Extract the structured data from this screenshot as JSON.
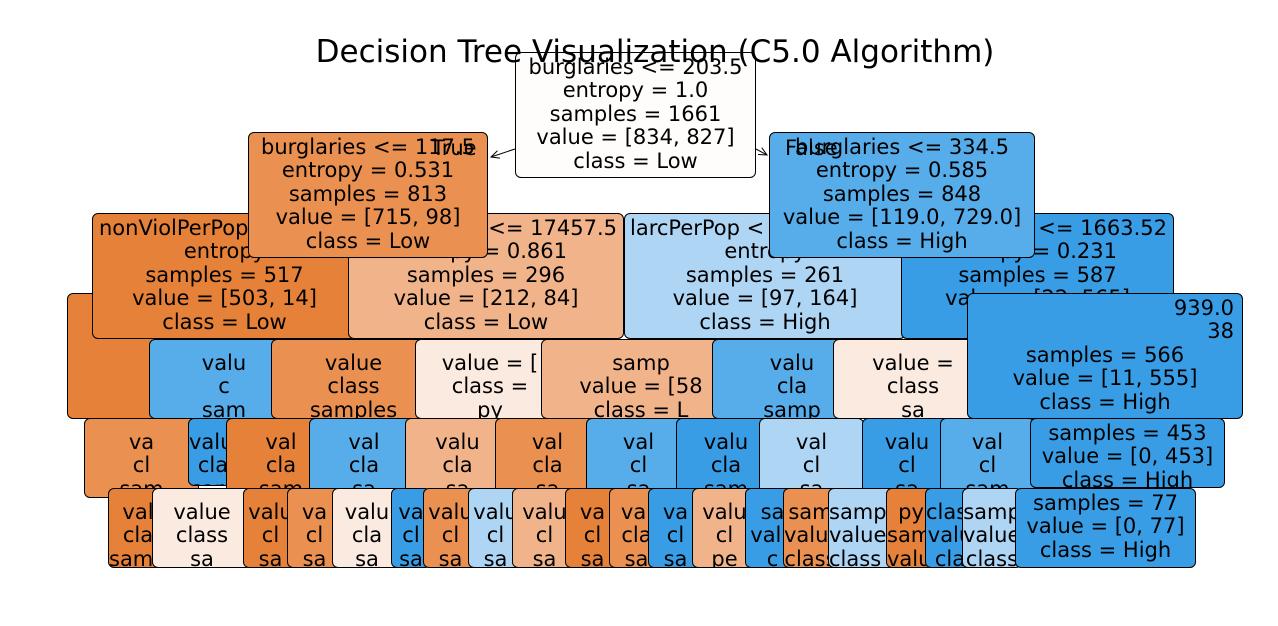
{
  "title": "Decision Tree Visualization (C5.0 Algorithm)",
  "edge_labels": {
    "left": "True",
    "right": "False"
  },
  "colors": {
    "orange_dark": "#e58139",
    "orange_mid": "#ea9050",
    "orange_light": "#f0b38a",
    "orange_pale": "#fbeae0",
    "blue_dark": "#399de5",
    "blue_mid": "#57acea",
    "blue_light": "#aed5f4",
    "near_white": "#fffdfc"
  },
  "nodes": [
    {
      "id": "root",
      "lines": [
        "burglaries <= 203.5",
        "entropy = 1.0",
        "samples = 1661",
        "value = [834, 827]",
        "class = Low"
      ]
    },
    {
      "id": "l",
      "lines": [
        "burglaries <= 117.5",
        "entropy = 0.531",
        "samples = 813",
        "value = [715, 98]",
        "class = Low"
      ]
    },
    {
      "id": "r",
      "lines": [
        "burglaries <= 334.5",
        "entropy = 0.585",
        "samples = 848",
        "value = [119.0, 729.0]",
        "class = High"
      ]
    },
    {
      "id": "ll",
      "lines": [
        "nonViolPerPop",
        "entropy",
        "samples = 517",
        "value = [503, 14]",
        "class = Low"
      ]
    },
    {
      "id": "lr",
      "lines": [
        "<= 17457.5",
        "py = 0.861",
        "samples = 296",
        "value = [212, 84]",
        "class = Low"
      ]
    },
    {
      "id": "rl",
      "lines": [
        "larcPerPop <",
        "entropy",
        "samples = 261",
        "value = [97, 164]",
        "class = High"
      ]
    },
    {
      "id": "rr",
      "lines": [
        "<= 1663.52",
        "py = 0.231",
        "samples = 587",
        "value = [22, 565]",
        "class = High"
      ]
    },
    {
      "id": "rrr",
      "lines": [
        "939.0",
        "38",
        "samples = 566",
        "value = [11, 555]",
        "class = High"
      ]
    },
    {
      "id": "rrrr",
      "lines": [
        "samples = 453",
        "value = [0, 453]",
        "class = High"
      ]
    },
    {
      "id": "leaf77",
      "lines": [
        "samples = 77",
        "value = [0, 77]",
        "class = High"
      ]
    }
  ],
  "fragments": [
    "pe",
    "sa",
    "valu",
    "c",
    "sam",
    "value",
    "class",
    "samples",
    "value = [",
    "class =",
    "py",
    "samp",
    "value = [58",
    "class = L",
    "valu",
    "cla",
    "samp",
    "value =",
    "class",
    "sa",
    "va",
    "cl",
    "sam",
    "value",
    "cla",
    "sam",
    "val",
    "cla",
    "sam",
    "val",
    "cla",
    "sa",
    "valu",
    "cla",
    "sa",
    "val",
    "cla",
    "sa",
    "val",
    "cl",
    "sa",
    "valu",
    "cla",
    "sam",
    "val",
    "cl",
    "sa",
    "valu",
    "cl",
    "sa",
    "val",
    "cl",
    "sam",
    "val",
    "cla",
    "sampl",
    "value",
    "class",
    "sa",
    "valu",
    "cl",
    "sa",
    "va",
    "cl",
    "sa",
    "valu",
    "cla",
    "sa",
    "va",
    "cl",
    "sa",
    "valu",
    "cl",
    "sa",
    "valu",
    "cl",
    "sa",
    "valu",
    "cl",
    "sa",
    "va",
    "cl",
    "sa",
    "val",
    "cla",
    "sa",
    "va",
    "cl",
    "sa",
    "valu",
    "cl"
  ]
}
